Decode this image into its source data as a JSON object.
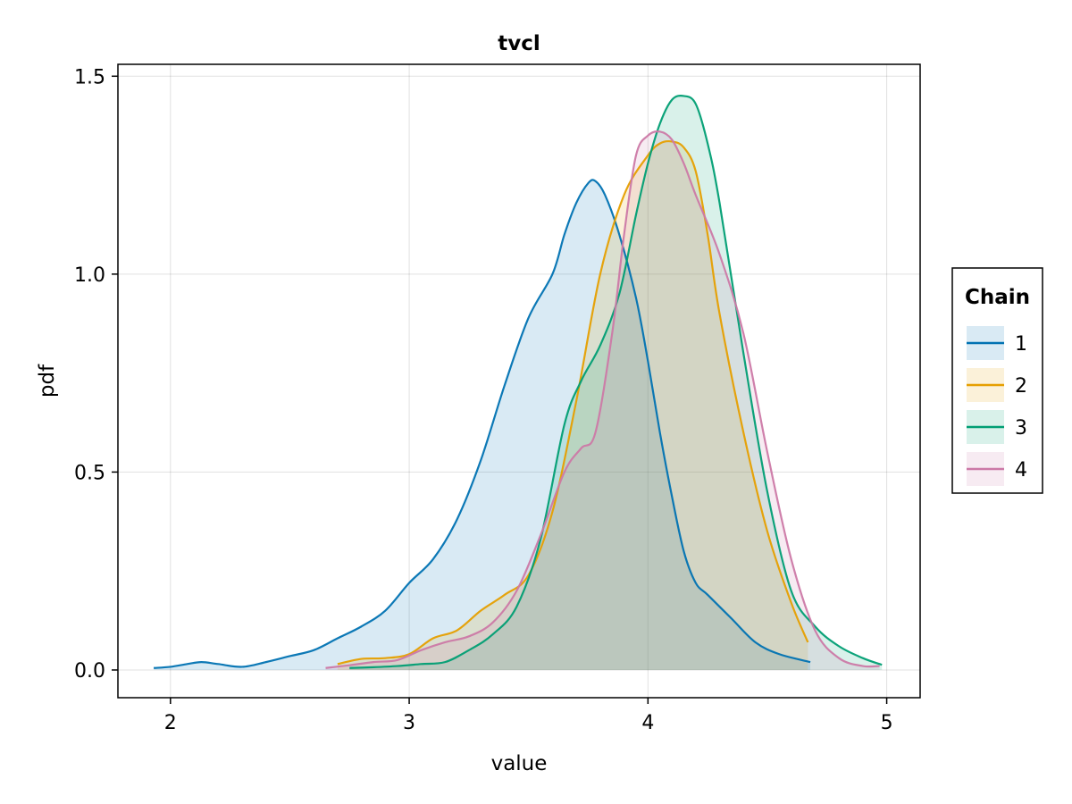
{
  "chart_data": {
    "type": "area",
    "title": "tvcl",
    "xlabel": "value",
    "ylabel": "pdf",
    "xlim": [
      1.78,
      5.14
    ],
    "ylim": [
      -0.07,
      1.53
    ],
    "xticks": [
      2,
      3,
      4,
      5
    ],
    "xtick_labels": [
      "2",
      "3",
      "4",
      "5"
    ],
    "yticks": [
      0.0,
      0.5,
      1.0,
      1.5
    ],
    "ytick_labels": [
      "0.0",
      "0.5",
      "1.0",
      "1.5"
    ],
    "grid": true,
    "legend": {
      "title": "Chain",
      "placement": "right"
    },
    "series": [
      {
        "name": "1",
        "color": "#0072b2",
        "x": [
          1.93,
          2.0,
          2.07,
          2.13,
          2.2,
          2.3,
          2.4,
          2.5,
          2.6,
          2.7,
          2.8,
          2.9,
          3.0,
          3.1,
          3.2,
          3.3,
          3.4,
          3.5,
          3.6,
          3.65,
          3.7,
          3.75,
          3.78,
          3.82,
          3.88,
          3.95,
          4.0,
          4.05,
          4.1,
          4.15,
          4.2,
          4.25,
          4.35,
          4.45,
          4.55,
          4.68
        ],
        "y": [
          0.005,
          0.008,
          0.015,
          0.02,
          0.015,
          0.008,
          0.02,
          0.035,
          0.05,
          0.08,
          0.11,
          0.15,
          0.22,
          0.28,
          0.38,
          0.53,
          0.72,
          0.89,
          1.0,
          1.1,
          1.18,
          1.23,
          1.235,
          1.2,
          1.1,
          0.94,
          0.78,
          0.6,
          0.44,
          0.3,
          0.22,
          0.19,
          0.13,
          0.07,
          0.04,
          0.02
        ]
      },
      {
        "name": "2",
        "color": "#e69f00",
        "x": [
          2.7,
          2.8,
          2.9,
          3.0,
          3.1,
          3.2,
          3.3,
          3.4,
          3.5,
          3.6,
          3.7,
          3.8,
          3.9,
          4.0,
          4.05,
          4.1,
          4.15,
          4.2,
          4.25,
          4.3,
          4.4,
          4.5,
          4.6,
          4.67
        ],
        "y": [
          0.015,
          0.028,
          0.03,
          0.04,
          0.08,
          0.1,
          0.15,
          0.19,
          0.24,
          0.4,
          0.68,
          1.0,
          1.2,
          1.3,
          1.33,
          1.335,
          1.32,
          1.26,
          1.1,
          0.9,
          0.6,
          0.35,
          0.17,
          0.07
        ]
      },
      {
        "name": "3",
        "color": "#009e73",
        "x": [
          2.75,
          2.85,
          2.95,
          3.05,
          3.15,
          3.25,
          3.35,
          3.45,
          3.55,
          3.65,
          3.72,
          3.8,
          3.88,
          3.95,
          4.0,
          4.05,
          4.1,
          4.15,
          4.2,
          4.25,
          4.3,
          4.4,
          4.5,
          4.6,
          4.7,
          4.8,
          4.9,
          4.98
        ],
        "y": [
          0.005,
          0.007,
          0.01,
          0.015,
          0.02,
          0.05,
          0.09,
          0.16,
          0.33,
          0.62,
          0.73,
          0.82,
          0.95,
          1.15,
          1.28,
          1.38,
          1.44,
          1.45,
          1.43,
          1.33,
          1.18,
          0.8,
          0.45,
          0.2,
          0.11,
          0.06,
          0.03,
          0.013
        ]
      },
      {
        "name": "4",
        "color": "#cc79a7",
        "x": [
          2.65,
          2.75,
          2.85,
          2.95,
          3.05,
          3.15,
          3.25,
          3.35,
          3.45,
          3.55,
          3.65,
          3.72,
          3.78,
          3.85,
          3.9,
          3.95,
          4.0,
          4.05,
          4.1,
          4.15,
          4.2,
          4.3,
          4.4,
          4.5,
          4.6,
          4.7,
          4.8,
          4.9,
          4.97
        ],
        "y": [
          0.005,
          0.012,
          0.02,
          0.025,
          0.05,
          0.07,
          0.085,
          0.12,
          0.2,
          0.34,
          0.5,
          0.56,
          0.6,
          0.85,
          1.1,
          1.3,
          1.35,
          1.36,
          1.34,
          1.28,
          1.2,
          1.05,
          0.85,
          0.55,
          0.28,
          0.1,
          0.03,
          0.01,
          0.01
        ]
      }
    ]
  }
}
